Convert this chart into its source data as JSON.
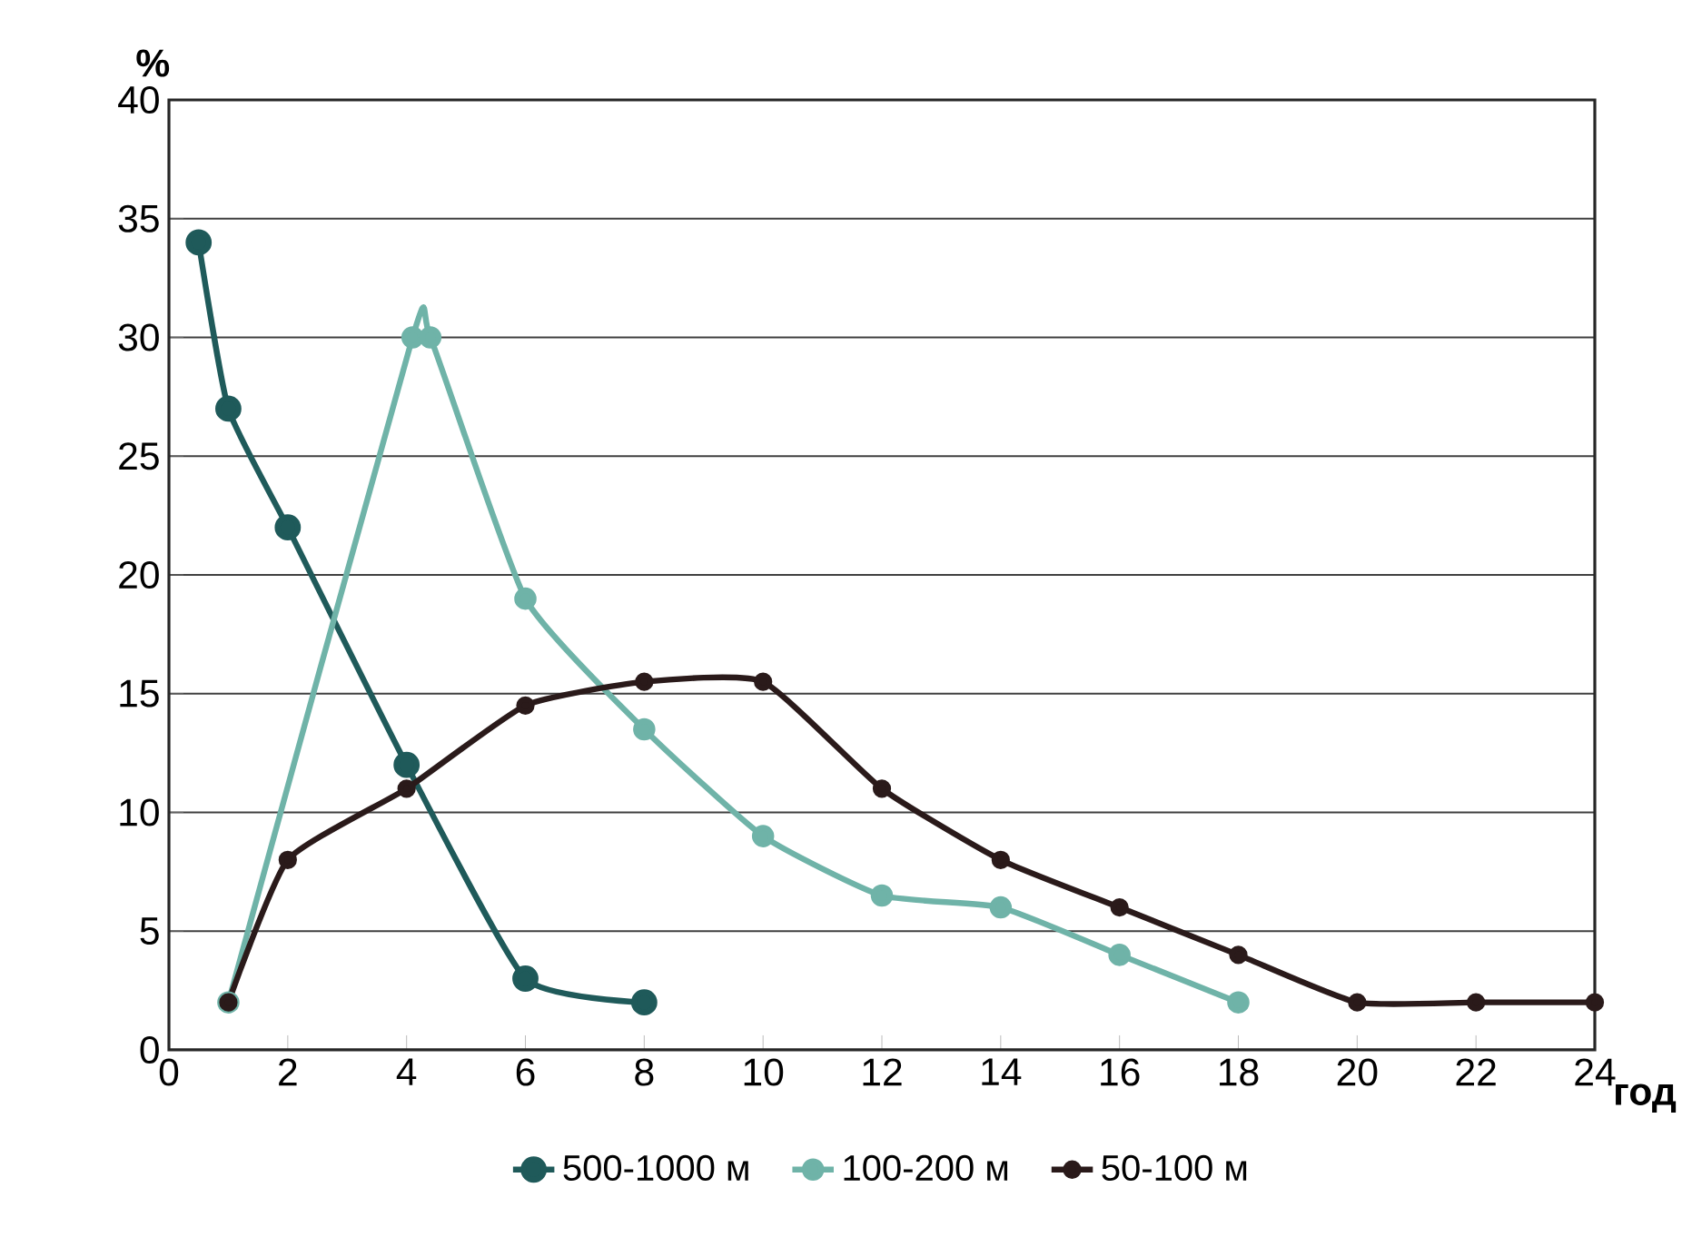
{
  "chart_data": {
    "type": "line",
    "xlabel": "год",
    "ylabel": "%",
    "xlim": [
      0,
      24
    ],
    "ylim": [
      0,
      40
    ],
    "xticks": [
      0,
      2,
      4,
      6,
      8,
      10,
      12,
      14,
      16,
      18,
      20,
      22,
      24
    ],
    "yticks": [
      0,
      5,
      10,
      15,
      20,
      25,
      30,
      35,
      40
    ],
    "grid": "y",
    "legend": "bottom",
    "marker": "circle",
    "line_style": "solid",
    "series": [
      {
        "name": "500-1000 м",
        "color": "#1f5a5a",
        "x": [
          0.5,
          1,
          2,
          4,
          6,
          8
        ],
        "values": [
          34,
          27,
          22,
          12,
          3,
          2
        ]
      },
      {
        "name": "100-200 м",
        "color": "#6fb3a8",
        "x": [
          1,
          4.1,
          4.4,
          6,
          8,
          10,
          12,
          14,
          16,
          18
        ],
        "values": [
          2,
          30,
          30,
          19,
          13.5,
          9,
          6.5,
          6,
          4,
          2
        ]
      },
      {
        "name": "50-100 м",
        "color": "#2a1a1a",
        "x": [
          1,
          2,
          4,
          6,
          8,
          10,
          12,
          14,
          16,
          18,
          20,
          22,
          24
        ],
        "values": [
          2,
          8,
          11,
          14.5,
          15.5,
          15.5,
          11,
          8,
          6,
          4,
          2,
          2,
          2
        ]
      }
    ]
  }
}
